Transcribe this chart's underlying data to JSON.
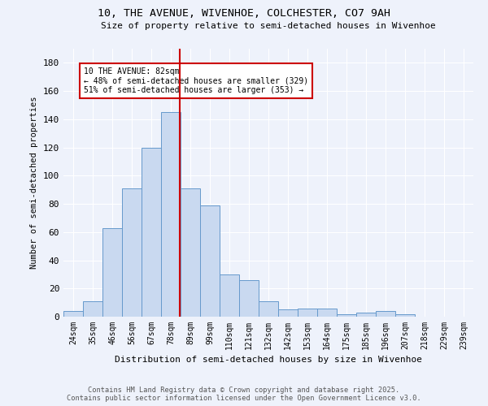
{
  "title1": "10, THE AVENUE, WIVENHOE, COLCHESTER, CO7 9AH",
  "title2": "Size of property relative to semi-detached houses in Wivenhoe",
  "xlabel": "Distribution of semi-detached houses by size in Wivenhoe",
  "ylabel": "Number of semi-detached properties",
  "categories": [
    "24sqm",
    "35sqm",
    "46sqm",
    "56sqm",
    "67sqm",
    "78sqm",
    "89sqm",
    "99sqm",
    "110sqm",
    "121sqm",
    "132sqm",
    "142sqm",
    "153sqm",
    "164sqm",
    "175sqm",
    "185sqm",
    "196sqm",
    "207sqm",
    "218sqm",
    "229sqm",
    "239sqm"
  ],
  "values": [
    4,
    11,
    63,
    91,
    120,
    145,
    91,
    79,
    30,
    26,
    11,
    5,
    6,
    6,
    2,
    3,
    4,
    2,
    0,
    0,
    0
  ],
  "bar_color": "#c9d9f0",
  "bar_edge_color": "#6699cc",
  "property_line_x": 5.45,
  "vline_color": "#cc0000",
  "annotation_text": "10 THE AVENUE: 82sqm\n← 48% of semi-detached houses are smaller (329)\n51% of semi-detached houses are larger (353) →",
  "annotation_box_color": "#ffffff",
  "annotation_box_edge": "#cc0000",
  "footer1": "Contains HM Land Registry data © Crown copyright and database right 2025.",
  "footer2": "Contains public sector information licensed under the Open Government Licence v3.0.",
  "ylim": [
    0,
    190
  ],
  "bg_color": "#eef2fb",
  "grid_color": "#ffffff",
  "yticks": [
    0,
    20,
    40,
    60,
    80,
    100,
    120,
    140,
    160,
    180
  ]
}
